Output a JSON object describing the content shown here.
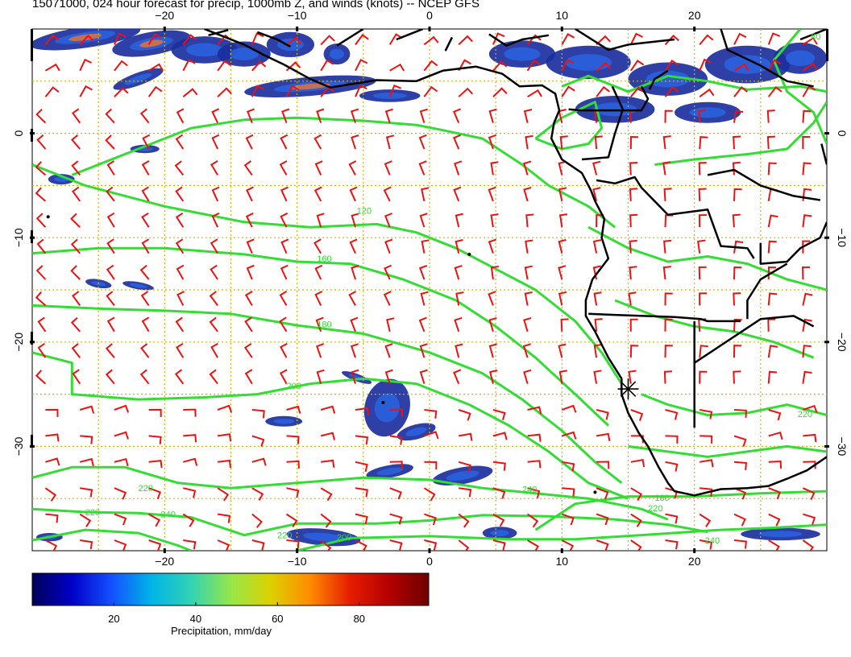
{
  "title": "15071000, 024 hour forecast for precip, 1000mb Z, and winds (knots) -- NCEP GFS",
  "map": {
    "lon_range": [
      -30,
      30
    ],
    "lat_range": [
      -40,
      10
    ],
    "lon_ticks": [
      {
        "value": -20,
        "label": "−20"
      },
      {
        "value": -10,
        "label": "−10"
      },
      {
        "value": 0,
        "label": "0"
      },
      {
        "value": 10,
        "label": "10"
      },
      {
        "value": 20,
        "label": "20"
      }
    ],
    "lat_ticks": [
      {
        "value": 0,
        "label": "0"
      },
      {
        "value": -10,
        "label": "−10"
      },
      {
        "value": -20,
        "label": "−20"
      },
      {
        "value": -30,
        "label": "−30"
      }
    ],
    "grid": true,
    "colors": {
      "barbs": "#ee1111",
      "contours": "#33dd33",
      "coast": "#000000",
      "grid": "#d4b800",
      "precip": "#1c2f9e"
    },
    "contour_labels": [
      {
        "label": "120",
        "lon": -5.5,
        "lat": -7.7
      },
      {
        "label": "160",
        "lon": -8.5,
        "lat": -12.3
      },
      {
        "label": "180",
        "lon": -8.5,
        "lat": -18.6
      },
      {
        "label": "200",
        "lon": -10.8,
        "lat": -24.5
      },
      {
        "label": "220",
        "lon": -22.0,
        "lat": -34.3
      },
      {
        "label": "240",
        "lon": -20.3,
        "lat": -36.8
      },
      {
        "label": "240",
        "lon": 7.0,
        "lat": -34.4
      },
      {
        "label": "220",
        "lon": -26.0,
        "lat": -36.6
      },
      {
        "label": "220",
        "lon": -11.5,
        "lat": -38.8
      },
      {
        "label": "200",
        "lon": -7.0,
        "lat": -39.0
      },
      {
        "label": "180",
        "lon": 17.0,
        "lat": -35.2
      },
      {
        "label": "220",
        "lon": 16.5,
        "lat": -36.2
      },
      {
        "label": "240",
        "lon": 20.8,
        "lat": -39.3
      },
      {
        "label": "80",
        "lon": 28.8,
        "lat": 9.0
      },
      {
        "label": "220",
        "lon": 27.8,
        "lat": -27.2
      }
    ],
    "station_marker": {
      "lon": 15.0,
      "lat": -24.5,
      "symbol": "asterisk"
    }
  },
  "colorbar": {
    "label": "Precipitation, mm/day",
    "range": [
      0,
      97
    ],
    "ticks": [
      {
        "value": 20,
        "label": "20"
      },
      {
        "value": 40,
        "label": "40"
      },
      {
        "value": 60,
        "label": "60"
      },
      {
        "value": 80,
        "label": "80"
      }
    ],
    "stops": [
      "#00005a",
      "#0000c8",
      "#1450ff",
      "#00b4e6",
      "#32d2b4",
      "#96e64b",
      "#dcd200",
      "#ff8c00",
      "#e61e00",
      "#b40000",
      "#6e0000"
    ]
  }
}
